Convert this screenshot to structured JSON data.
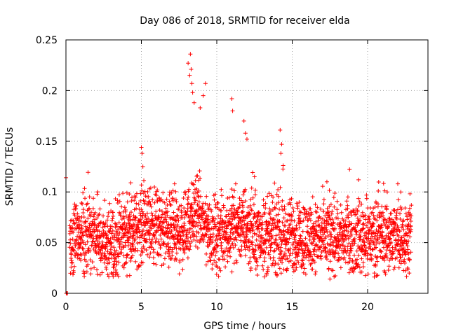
{
  "chart_data": {
    "type": "scatter",
    "title": "Day 086 of 2018, SRMTID for receiver elda",
    "xlabel": "GPS time / hours",
    "ylabel": "SRMTID / TECUs",
    "xlim": [
      0,
      24
    ],
    "ylim": [
      0,
      0.25
    ],
    "grid": true,
    "marker": "+",
    "color": "#ff0000",
    "x_ticks": [
      {
        "value": 0,
        "label": "0"
      },
      {
        "value": 5,
        "label": "5"
      },
      {
        "value": 10,
        "label": "10"
      },
      {
        "value": 15,
        "label": "15"
      },
      {
        "value": 20,
        "label": "20"
      }
    ],
    "y_ticks": [
      {
        "value": 0,
        "label": "0"
      },
      {
        "value": 0.05,
        "label": "0.05"
      },
      {
        "value": 0.1,
        "label": "0.1"
      },
      {
        "value": 0.15,
        "label": "0.15"
      },
      {
        "value": 0.2,
        "label": "0.2"
      },
      {
        "value": 0.25,
        "label": "0.25"
      }
    ],
    "series": [
      {
        "name": "SRMTID",
        "time_range_hours": [
          0,
          22.9
        ],
        "sample_interval_hours": 0.00833,
        "points": [
          [
            0.0,
            0.114
          ],
          [
            0.02,
            0.0
          ],
          [
            0.05,
            0.0
          ],
          [
            0.1,
            0.0
          ],
          [
            8.25,
            0.236
          ],
          [
            8.1,
            0.227
          ],
          [
            8.3,
            0.221
          ],
          [
            8.2,
            0.215
          ],
          [
            8.35,
            0.207
          ],
          [
            8.4,
            0.198
          ],
          [
            8.5,
            0.188
          ],
          [
            9.25,
            0.207
          ],
          [
            9.1,
            0.195
          ],
          [
            8.9,
            0.183
          ],
          [
            11.0,
            0.192
          ],
          [
            11.05,
            0.18
          ],
          [
            11.8,
            0.17
          ],
          [
            11.9,
            0.158
          ],
          [
            12.0,
            0.152
          ],
          [
            14.2,
            0.161
          ],
          [
            14.3,
            0.147
          ],
          [
            14.25,
            0.138
          ],
          [
            14.4,
            0.126
          ],
          [
            5.0,
            0.144
          ],
          [
            5.05,
            0.138
          ],
          [
            5.1,
            0.125
          ],
          [
            4.3,
            0.109
          ],
          [
            4.2,
            0.098
          ],
          [
            7.2,
            0.108
          ],
          [
            12.5,
            0.115
          ],
          [
            17.3,
            0.11
          ],
          [
            19.4,
            0.112
          ],
          [
            21.3,
            0.1
          ],
          [
            22.0,
            0.108
          ],
          [
            22.2,
            0.1
          ],
          [
            13.3,
            0.018
          ],
          [
            17.5,
            0.014
          ],
          [
            3.0,
            0.02
          ]
        ]
      }
    ]
  }
}
